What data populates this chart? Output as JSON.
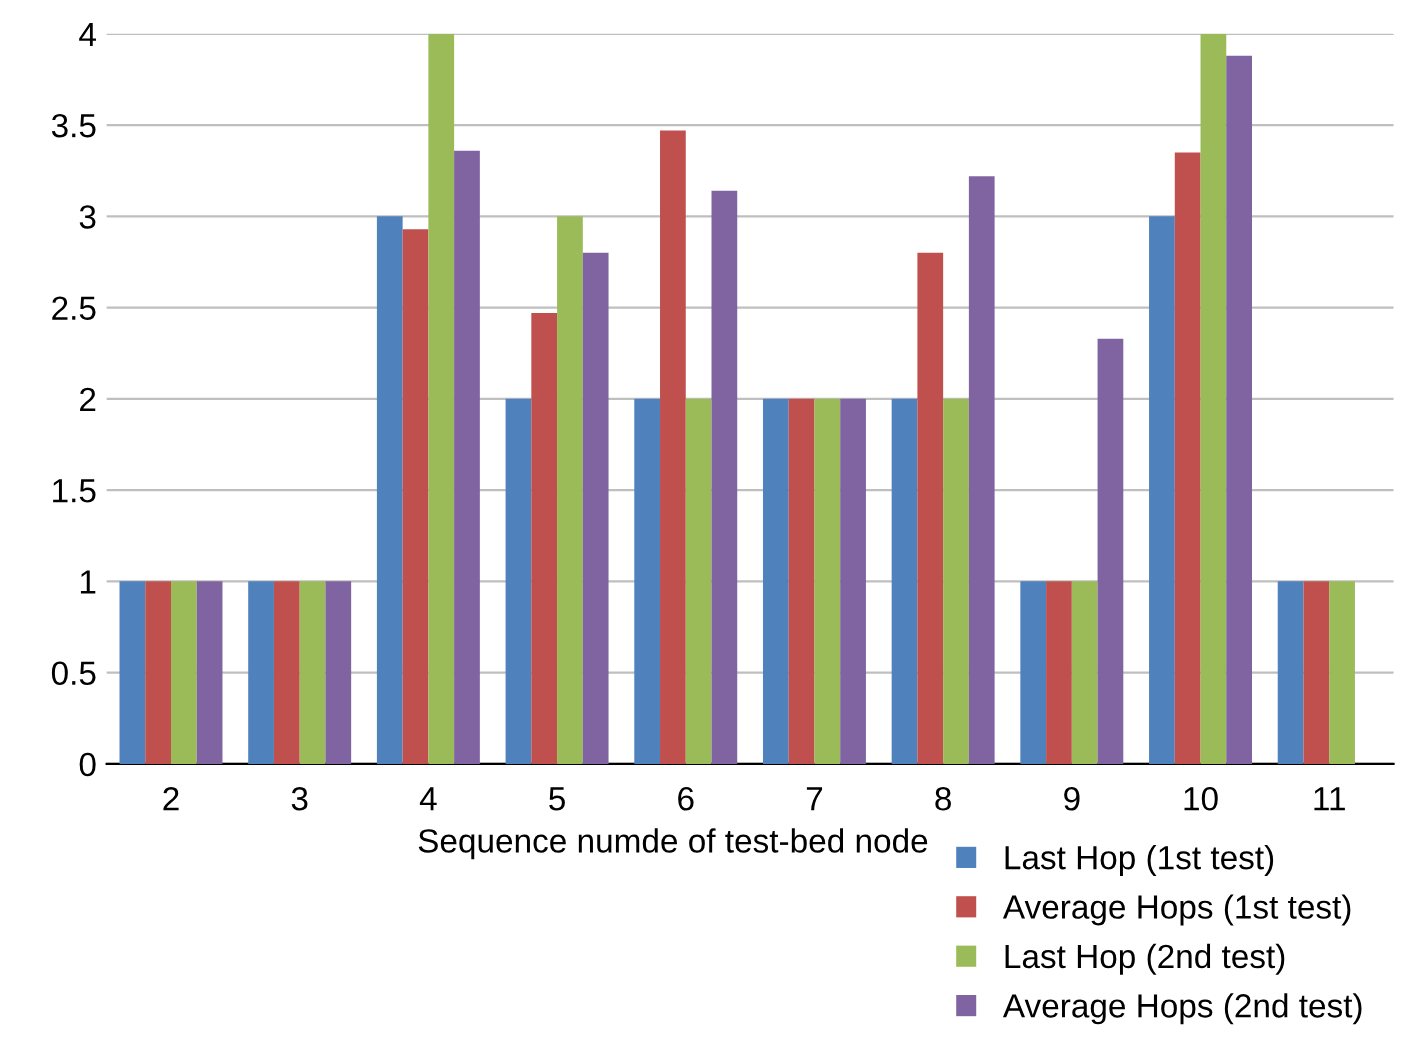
{
  "chart_data": {
    "type": "bar",
    "xlabel": "Sequence numde of test-bed node",
    "categories": [
      "2",
      "3",
      "4",
      "5",
      "6",
      "7",
      "8",
      "9",
      "10",
      "11"
    ],
    "series": [
      {
        "name": "Last Hop (1st test)",
        "color": "#4f81bd",
        "values": [
          1,
          1,
          3,
          2,
          2,
          2,
          2,
          1,
          3,
          1
        ]
      },
      {
        "name": "Average Hops (1st test)",
        "color": "#c0504d",
        "values": [
          1,
          1,
          2.93,
          2.47,
          3.47,
          2,
          2.8,
          1,
          3.35,
          1
        ]
      },
      {
        "name": "Last Hop (2nd test)",
        "color": "#9bbb59",
        "values": [
          1,
          1,
          4,
          3,
          2,
          2,
          2,
          1,
          4,
          1
        ]
      },
      {
        "name": "Average Hops (2nd test)",
        "color": "#8064a2",
        "values": [
          1,
          1,
          3.36,
          2.8,
          3.14,
          2,
          3.22,
          2.33,
          3.88,
          null
        ]
      }
    ],
    "ylim": [
      0,
      4
    ],
    "yticks": [
      0,
      0.5,
      1,
      1.5,
      2,
      2.5,
      3,
      3.5,
      4
    ],
    "grid": "y",
    "legend": "bottom right"
  }
}
